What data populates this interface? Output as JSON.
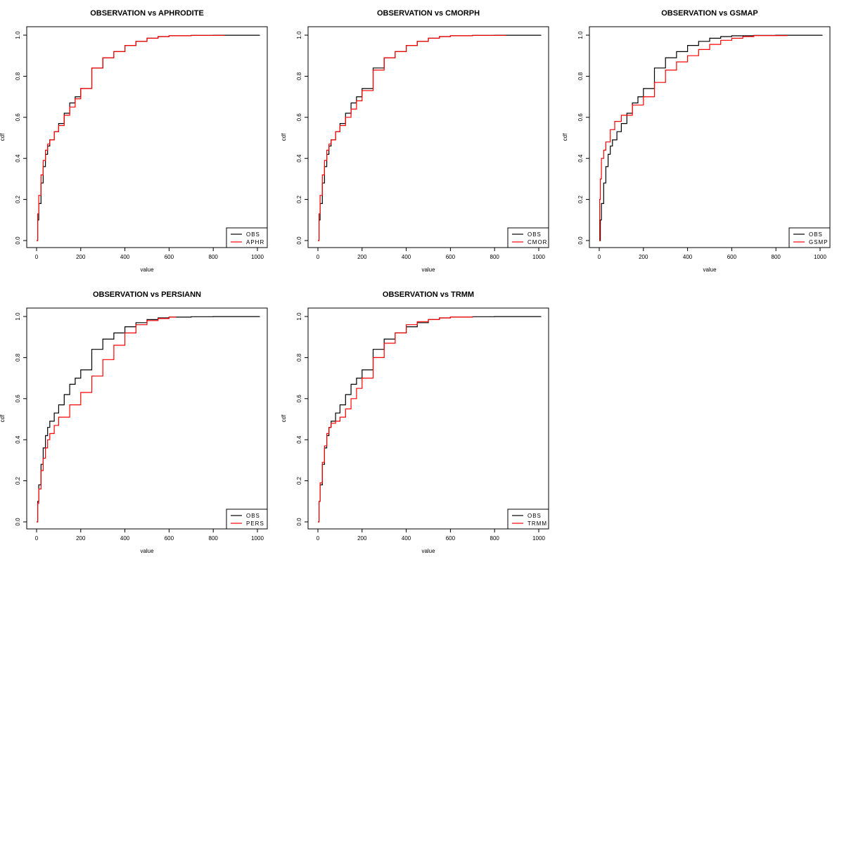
{
  "chart_data": [
    {
      "type": "line",
      "title": "OBSERVATION vs APHRODITE",
      "xlabel": "value",
      "ylabel": "cdf",
      "xlim": [
        0,
        1000
      ],
      "ylim": [
        0,
        1
      ],
      "xticks": [
        "0",
        "200",
        "400",
        "600",
        "800",
        "1000"
      ],
      "yticks": [
        "0.0",
        "0.2",
        "0.4",
        "0.6",
        "0.8",
        "1.0"
      ],
      "legend_position": "bottom-right",
      "series": [
        {
          "name": "OBS",
          "color": "#000000",
          "x": [
            0,
            5,
            10,
            20,
            30,
            40,
            50,
            60,
            80,
            100,
            125,
            150,
            175,
            200,
            250,
            300,
            350,
            400,
            450,
            500,
            550,
            600,
            700,
            800,
            1010
          ],
          "y": [
            0.0,
            0.1,
            0.18,
            0.28,
            0.36,
            0.42,
            0.46,
            0.49,
            0.53,
            0.57,
            0.62,
            0.67,
            0.7,
            0.74,
            0.84,
            0.89,
            0.92,
            0.95,
            0.97,
            0.985,
            0.993,
            0.997,
            0.999,
            0.9995,
            1.0
          ]
        },
        {
          "name": "APHR",
          "color": "#ff0000",
          "x": [
            0,
            5,
            10,
            20,
            30,
            40,
            50,
            60,
            80,
            100,
            125,
            150,
            175,
            200,
            250,
            300,
            350,
            400,
            450,
            500,
            550,
            600,
            700,
            850
          ],
          "y": [
            0.0,
            0.13,
            0.22,
            0.32,
            0.39,
            0.44,
            0.47,
            0.49,
            0.53,
            0.56,
            0.61,
            0.65,
            0.69,
            0.74,
            0.84,
            0.89,
            0.92,
            0.95,
            0.97,
            0.985,
            0.993,
            0.997,
            0.999,
            1.0
          ]
        }
      ]
    },
    {
      "type": "line",
      "title": "OBSERVATION vs CMORPH",
      "xlabel": "value",
      "ylabel": "cdf",
      "xlim": [
        0,
        1000
      ],
      "ylim": [
        0,
        1
      ],
      "xticks": [
        "0",
        "200",
        "400",
        "600",
        "800",
        "1000"
      ],
      "yticks": [
        "0.0",
        "0.2",
        "0.4",
        "0.6",
        "0.8",
        "1.0"
      ],
      "legend_position": "bottom-right",
      "series": [
        {
          "name": "OBS",
          "color": "#000000",
          "x": [
            0,
            5,
            10,
            20,
            30,
            40,
            50,
            60,
            80,
            100,
            125,
            150,
            175,
            200,
            250,
            300,
            350,
            400,
            450,
            500,
            550,
            600,
            700,
            800,
            1010
          ],
          "y": [
            0.0,
            0.1,
            0.18,
            0.28,
            0.36,
            0.42,
            0.46,
            0.49,
            0.53,
            0.57,
            0.62,
            0.67,
            0.7,
            0.74,
            0.84,
            0.89,
            0.92,
            0.95,
            0.97,
            0.985,
            0.993,
            0.997,
            0.999,
            0.9995,
            1.0
          ]
        },
        {
          "name": "CMOR",
          "color": "#ff0000",
          "x": [
            0,
            5,
            10,
            20,
            30,
            40,
            50,
            60,
            80,
            100,
            125,
            150,
            175,
            200,
            250,
            300,
            350,
            400,
            450,
            500,
            550,
            600,
            700,
            850
          ],
          "y": [
            0.0,
            0.13,
            0.22,
            0.32,
            0.39,
            0.44,
            0.47,
            0.49,
            0.53,
            0.56,
            0.6,
            0.64,
            0.68,
            0.73,
            0.83,
            0.89,
            0.92,
            0.95,
            0.97,
            0.985,
            0.993,
            0.997,
            0.999,
            1.0
          ]
        }
      ]
    },
    {
      "type": "line",
      "title": "OBSERVATION vs GSMAP",
      "xlabel": "value",
      "ylabel": "cdf",
      "xlim": [
        0,
        1000
      ],
      "ylim": [
        0,
        1
      ],
      "xticks": [
        "0",
        "200",
        "400",
        "600",
        "800",
        "1000"
      ],
      "yticks": [
        "0.0",
        "0.2",
        "0.4",
        "0.6",
        "0.8",
        "1.0"
      ],
      "legend_position": "bottom-right",
      "series": [
        {
          "name": "OBS",
          "color": "#000000",
          "x": [
            0,
            5,
            10,
            20,
            30,
            40,
            50,
            60,
            80,
            100,
            125,
            150,
            175,
            200,
            250,
            300,
            350,
            400,
            450,
            500,
            550,
            600,
            700,
            800,
            1010
          ],
          "y": [
            0.0,
            0.1,
            0.18,
            0.28,
            0.36,
            0.42,
            0.46,
            0.49,
            0.53,
            0.57,
            0.62,
            0.67,
            0.7,
            0.74,
            0.84,
            0.89,
            0.92,
            0.95,
            0.97,
            0.985,
            0.993,
            0.997,
            0.999,
            0.9995,
            1.0
          ]
        },
        {
          "name": "GSMP",
          "color": "#ff0000",
          "x": [
            0,
            2,
            5,
            10,
            20,
            30,
            50,
            70,
            100,
            150,
            200,
            250,
            300,
            350,
            400,
            450,
            500,
            550,
            600,
            650,
            700,
            850
          ],
          "y": [
            0.0,
            0.2,
            0.3,
            0.4,
            0.44,
            0.48,
            0.54,
            0.58,
            0.61,
            0.66,
            0.7,
            0.77,
            0.83,
            0.87,
            0.9,
            0.93,
            0.955,
            0.975,
            0.985,
            0.993,
            0.998,
            1.0
          ]
        }
      ]
    },
    {
      "type": "line",
      "title": "OBSERVATION vs PERSIANN",
      "xlabel": "value",
      "ylabel": "cdf",
      "xlim": [
        0,
        1000
      ],
      "ylim": [
        0,
        1
      ],
      "xticks": [
        "0",
        "200",
        "400",
        "600",
        "800",
        "1000"
      ],
      "yticks": [
        "0.0",
        "0.2",
        "0.4",
        "0.6",
        "0.8",
        "1.0"
      ],
      "legend_position": "bottom-right",
      "series": [
        {
          "name": "OBS",
          "color": "#000000",
          "x": [
            0,
            5,
            10,
            20,
            30,
            40,
            50,
            60,
            80,
            100,
            125,
            150,
            175,
            200,
            250,
            300,
            350,
            400,
            450,
            500,
            550,
            600,
            700,
            800,
            1010
          ],
          "y": [
            0.0,
            0.1,
            0.18,
            0.28,
            0.36,
            0.42,
            0.46,
            0.49,
            0.53,
            0.57,
            0.62,
            0.67,
            0.7,
            0.74,
            0.84,
            0.89,
            0.92,
            0.95,
            0.97,
            0.985,
            0.993,
            0.997,
            0.999,
            0.9995,
            1.0
          ]
        },
        {
          "name": "PERS",
          "color": "#ff0000",
          "x": [
            0,
            5,
            10,
            20,
            30,
            40,
            50,
            60,
            80,
            100,
            150,
            200,
            250,
            300,
            350,
            400,
            450,
            500,
            550,
            600,
            630
          ],
          "y": [
            0.0,
            0.09,
            0.16,
            0.25,
            0.31,
            0.36,
            0.4,
            0.43,
            0.47,
            0.51,
            0.57,
            0.63,
            0.71,
            0.79,
            0.86,
            0.92,
            0.96,
            0.98,
            0.99,
            0.997,
            1.0
          ]
        }
      ]
    },
    {
      "type": "line",
      "title": "OBSERVATION vs TRMM",
      "xlabel": "value",
      "ylabel": "cdf",
      "xlim": [
        0,
        1000
      ],
      "ylim": [
        0,
        1
      ],
      "xticks": [
        "0",
        "200",
        "400",
        "600",
        "800",
        "1000"
      ],
      "yticks": [
        "0.0",
        "0.2",
        "0.4",
        "0.6",
        "0.8",
        "1.0"
      ],
      "legend_position": "bottom-right",
      "series": [
        {
          "name": "OBS",
          "color": "#000000",
          "x": [
            0,
            5,
            10,
            20,
            30,
            40,
            50,
            60,
            80,
            100,
            125,
            150,
            175,
            200,
            250,
            300,
            350,
            400,
            450,
            500,
            550,
            600,
            700,
            800,
            1010
          ],
          "y": [
            0.0,
            0.1,
            0.18,
            0.28,
            0.36,
            0.42,
            0.46,
            0.49,
            0.53,
            0.57,
            0.62,
            0.67,
            0.7,
            0.74,
            0.84,
            0.89,
            0.92,
            0.95,
            0.97,
            0.985,
            0.993,
            0.997,
            0.999,
            0.9995,
            1.0
          ]
        },
        {
          "name": "TRMM",
          "color": "#ff0000",
          "x": [
            0,
            5,
            10,
            20,
            30,
            40,
            50,
            60,
            80,
            100,
            125,
            150,
            175,
            200,
            250,
            300,
            350,
            400,
            450,
            500,
            550,
            600,
            700
          ],
          "y": [
            0.0,
            0.1,
            0.19,
            0.29,
            0.37,
            0.43,
            0.46,
            0.48,
            0.49,
            0.51,
            0.55,
            0.6,
            0.65,
            0.7,
            0.8,
            0.87,
            0.92,
            0.96,
            0.975,
            0.985,
            0.993,
            0.997,
            1.0
          ]
        }
      ]
    }
  ]
}
